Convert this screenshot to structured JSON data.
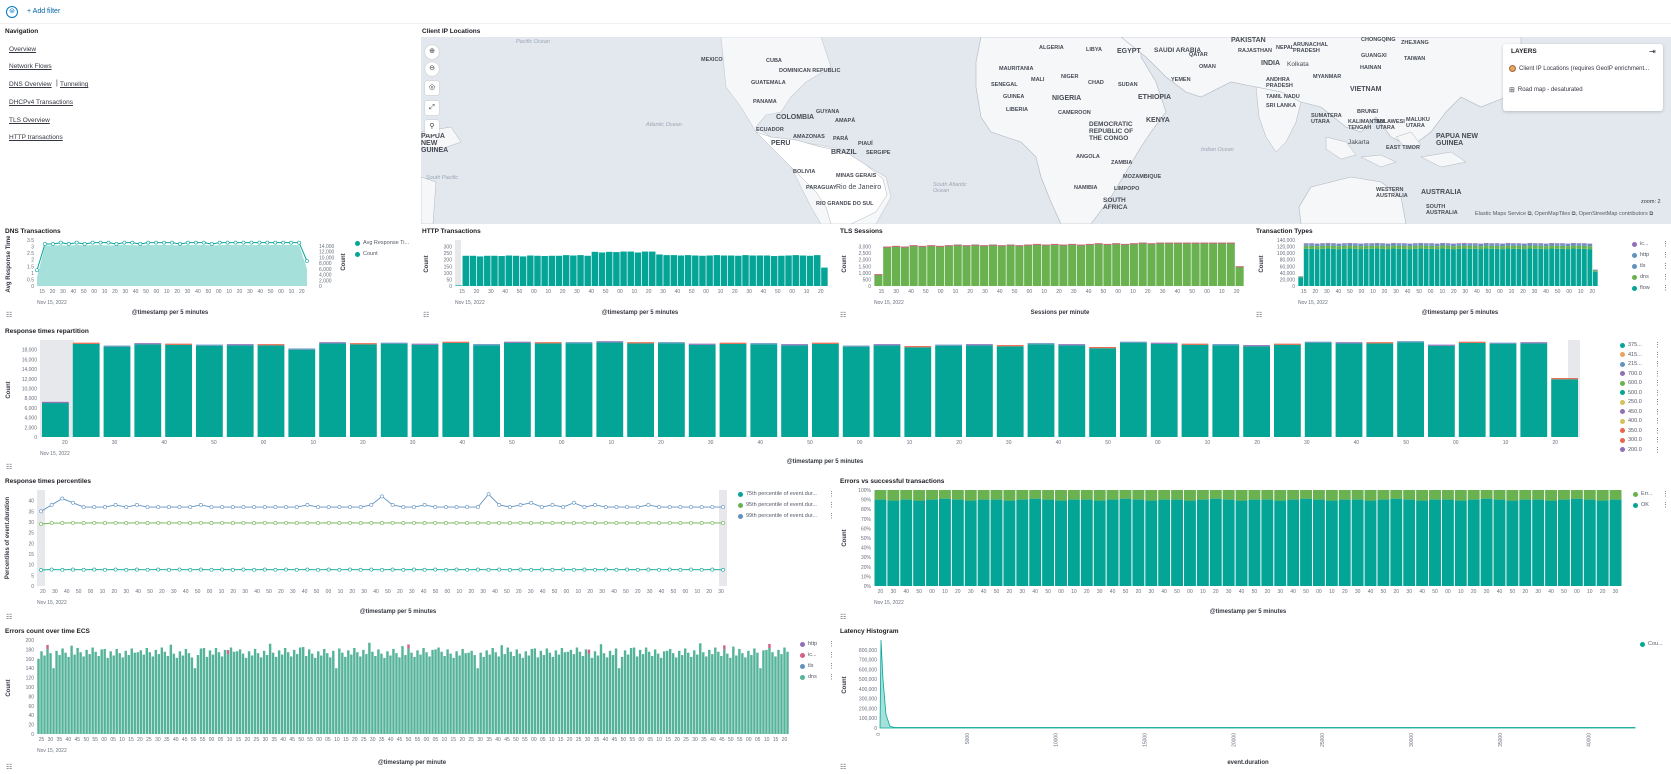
{
  "filter_bar": {
    "add_filter": "+ Add filter"
  },
  "navigation": {
    "title": "Navigation",
    "links": [
      "Overview",
      "Network Flows",
      "DNS Overview",
      "Tunneling",
      "DHCPv4 Transactions",
      "TLS Overview",
      "HTTP transactions"
    ]
  },
  "map": {
    "title": "Client IP Locations",
    "layers_title": "LAYERS",
    "layers": [
      "Client IP Locations (requires GeoIP enrichment...",
      "Road map - desaturated"
    ],
    "attribution": "Elastic Maps Service ⧉, OpenMapTiles ⧉, OpenStreetMap contributors ⧉",
    "zoom_label": "zoom: 2",
    "countries": [
      "MEXICO",
      "CUBA",
      "DOMINICAN REPUBLIC",
      "GUATEMALA",
      "PANAMA",
      "GUYANA",
      "COLOMBIA",
      "AMAPÁ",
      "ECUADOR",
      "AMAZONAS",
      "PARÁ",
      "PERU",
      "PIAUÍ",
      "BRAZIL",
      "SERGIPE",
      "BOLIVIA",
      "MINAS GERAIS",
      "PARAGUAY",
      "Rio de Janeiro",
      "RIO GRANDE DO SUL",
      "ALGERIA",
      "LIBYA",
      "EGYPT",
      "SAUDI ARABIA",
      "QATAR",
      "OMAN",
      "YEMEN",
      "MAURITANIA",
      "MALI",
      "NIGER",
      "CHAD",
      "SUDAN",
      "SENEGAL",
      "GUINEA",
      "NIGERIA",
      "ETHIOPIA",
      "LIBERIA",
      "CAMEROON",
      "KENYA",
      "DEMOCRATIC REPUBLIC OF THE CONGO",
      "ANGOLA",
      "ZAMBIA",
      "MOZAMBIQUE",
      "NAMIBIA",
      "LIMPOPO",
      "SOUTH AFRICA",
      "PAKISTAN",
      "RAJASTHAN",
      "NEPAL",
      "ARUNACHAL PRADESH",
      "INDIA",
      "Kolkata",
      "ANDHRA PRADESH",
      "TAMIL NADU",
      "SRI LANKA",
      "MYANMAR",
      "VIETNAM",
      "SUMATERA UTARA",
      "KALIMANTAN TENGAH",
      "Jakarta",
      "EAST TIMOR",
      "PAPUA NEW GUINEA",
      "WESTERN AUSTRALIA",
      "AUSTRALIA",
      "SOUTH AUSTRALIA",
      "CHONGQING",
      "ZHEJIANG",
      "TAIWAN",
      "GUANGXI",
      "HAINAN",
      "BRUNEI",
      "SULAWESI UTARA",
      "MALUKU UTARA",
      "PAPUA NEW GUINEA"
    ],
    "oceans": [
      "Pacific Ocean",
      "Atlantic Ocean",
      "South Atlantic Ocean",
      "Indian Ocean",
      "South Pacific"
    ]
  },
  "panels": {
    "dns": {
      "title": "DNS Transactions",
      "ylabel": "Avg Response Time",
      "ylabel2": "Count",
      "xlabel": "@timestamp per 5 minutes",
      "legend": [
        "Avg Response Ti...",
        "Count"
      ]
    },
    "http": {
      "title": "HTTP Transactions",
      "ylabel": "Count",
      "xlabel": "@timestamp per 5 minutes"
    },
    "tls": {
      "title": "TLS Sessions",
      "ylabel": "Count",
      "xlabel": "Sessions per minute"
    },
    "ttypes": {
      "title": "Transaction Types",
      "ylabel": "Count",
      "xlabel": "@timestamp per 5 minutes",
      "legend": [
        "ic...",
        "http",
        "tls",
        "dns",
        "flow"
      ]
    },
    "resp": {
      "title": "Response times repartition",
      "ylabel": "Count",
      "xlabel": "@timestamp per 5 minutes",
      "legend": [
        "375...",
        "415...",
        "215...",
        "700.0",
        "600.0",
        "500.0",
        "250.0",
        "450.0",
        "400.0",
        "350.0",
        "300.0",
        "200.0"
      ]
    },
    "pct": {
      "title": "Response times percentiles",
      "ylabel": "Percentiles of event.duration",
      "xlabel": "@timestamp per 5 minutes",
      "legend": [
        "75th percentile of event.dur...",
        "95th percentile of event.dur...",
        "99th percentile of event.dur..."
      ]
    },
    "errs": {
      "title": "Errors vs successful transactions",
      "ylabel": "Count",
      "xlabel": "@timestamp per 5 minutes",
      "legend": [
        "Err...",
        "OK"
      ]
    },
    "errecs": {
      "title": "Errors count over time ECS",
      "ylabel": "Count",
      "xlabel": "@timestamp per minute",
      "legend": [
        "http",
        "ic...",
        "tls",
        "dns"
      ]
    },
    "lat": {
      "title": "Latency Histogram",
      "ylabel": "Count",
      "xlabel": "event.duration",
      "legend": [
        "Cou..."
      ]
    }
  },
  "date_label": "Nov 15, 2022",
  "colors": {
    "teal": "#04a497",
    "green": "#6ab150",
    "blue": "#6092c0",
    "purple": "#9170b8",
    "pink": "#d36086",
    "light_teal": "#a6e0db",
    "accent": "#0077cc"
  },
  "chart_data": [
    {
      "id": "dns",
      "type": "area",
      "ylim": [
        0,
        3.5
      ],
      "y2lim": [
        0,
        16000
      ],
      "yticks": [
        "0",
        "0.5",
        "1",
        "1.5",
        "2",
        "2.5",
        "3",
        "3.5"
      ],
      "y2ticks": [
        "0",
        "2,000",
        "4,000",
        "6,000",
        "8,000",
        "10,000",
        "12,000",
        "14,000"
      ],
      "xticks": [
        "15",
        "20",
        "30",
        "40",
        "50",
        "00",
        "10",
        "20",
        "30",
        "40",
        "50",
        "00",
        "10",
        "20",
        "30",
        "40",
        "50",
        "00",
        "10",
        "20",
        "30",
        "40",
        "50",
        "00",
        "10",
        "20"
      ],
      "series": [
        {
          "name": "Avg Response Ti...",
          "values": [
            1.2,
            3.2,
            3.2,
            3.3,
            3.2,
            3.3,
            3.2,
            3.3,
            3.3,
            3.3,
            3.2,
            3.3,
            3.3,
            3.2,
            3.3,
            3.3,
            3.3,
            3.3,
            3.2,
            3.3,
            3.3,
            3.3,
            3.2,
            3.3,
            3.3,
            3.3,
            3.3,
            3.3,
            3.3,
            3.3,
            3.3,
            3.3,
            3.3,
            3.3,
            1.9
          ]
        },
        {
          "name": "Count",
          "values": [
            3000,
            14000,
            14100,
            14200,
            14000,
            14300,
            14100,
            14200,
            14300,
            14100,
            14200,
            14300,
            14200,
            14100,
            14300,
            14200,
            14300,
            14200,
            14100,
            14300,
            14200,
            14300,
            14100,
            14200,
            14300,
            14200,
            14300,
            14200,
            14300,
            14200,
            14300,
            14200,
            14300,
            14200,
            6000
          ]
        }
      ]
    },
    {
      "id": "http",
      "type": "bar",
      "ylim": [
        0,
        350
      ],
      "yticks": [
        "0",
        "50",
        "100",
        "150",
        "200",
        "250",
        "300"
      ],
      "xticks": [
        "15",
        "20",
        "30",
        "40",
        "50",
        "00",
        "10",
        "20",
        "30",
        "40",
        "50",
        "00",
        "10",
        "20",
        "30",
        "40",
        "50",
        "00",
        "10",
        "20",
        "30",
        "40",
        "50",
        "00",
        "10",
        "20"
      ],
      "values": [
        5,
        230,
        230,
        225,
        230,
        230,
        228,
        232,
        230,
        225,
        232,
        230,
        228,
        230,
        230,
        235,
        232,
        235,
        230,
        260,
        255,
        260,
        258,
        262,
        262,
        255,
        262,
        262,
        240,
        235,
        235,
        232,
        235,
        232,
        230,
        232,
        235,
        232,
        232,
        230,
        235,
        232,
        232,
        232,
        228,
        230,
        232,
        235,
        232,
        230,
        235,
        140
      ]
    },
    {
      "id": "tls",
      "type": "bar",
      "ylim": [
        0,
        3500
      ],
      "yticks": [
        "0",
        "500",
        "1,000",
        "1,500",
        "2,000",
        "2,500",
        "3,000"
      ],
      "xticks": [
        "15",
        "30",
        "40",
        "50",
        "00",
        "10",
        "20",
        "30",
        "40",
        "50",
        "00",
        "10",
        "20",
        "30",
        "40",
        "50",
        "00",
        "10",
        "20",
        "30",
        "40",
        "50",
        "00",
        "10",
        "20"
      ],
      "values": [
        900,
        3000,
        3050,
        3000,
        3100,
        3050,
        3100,
        3050,
        3100,
        3150,
        3100,
        3150,
        3100,
        3150,
        3100,
        3150,
        3100,
        3150,
        3200,
        3150,
        3200,
        3150,
        3200,
        3150,
        3200,
        3250,
        3200,
        3250,
        3200,
        3250,
        3300,
        3250,
        3300,
        3300,
        3300,
        3300,
        3300,
        3300,
        3300,
        3300,
        3300,
        1500
      ]
    },
    {
      "id": "ttypes",
      "type": "bar",
      "ylim": [
        0,
        140000
      ],
      "yticks": [
        "0",
        "20,000",
        "40,000",
        "60,000",
        "80,000",
        "100,000",
        "120,000",
        "140,000"
      ],
      "xticks": [
        "15",
        "20",
        "30",
        "40",
        "50",
        "00",
        "10",
        "20",
        "30",
        "40",
        "50",
        "00",
        "10",
        "20",
        "30",
        "40",
        "50",
        "00",
        "10",
        "20",
        "30",
        "40",
        "50",
        "00",
        "10",
        "20"
      ],
      "values": [
        30000,
        130000,
        130000,
        129000,
        130000,
        131000,
        130000,
        129000,
        130000,
        131000,
        130000,
        129000,
        130000,
        130000,
        131000,
        130000,
        129000,
        131000,
        130000,
        130000,
        129000,
        130000,
        131000,
        130000,
        130000,
        129000,
        131000,
        130000,
        129000,
        130000,
        131000,
        130000,
        130000,
        129000,
        131000,
        130000,
        130000,
        129000,
        131000,
        130000,
        130000,
        129000,
        131000,
        130000,
        130000,
        129000,
        131000,
        130000,
        130000,
        129000,
        131000,
        130000,
        130000,
        129000,
        50000
      ]
    },
    {
      "id": "resp",
      "type": "bar",
      "ylim": [
        0,
        20000
      ],
      "yticks": [
        "0",
        "2,000",
        "4,000",
        "6,000",
        "8,000",
        "10,000",
        "12,000",
        "14,000",
        "16,000",
        "18,000"
      ],
      "xticks": [
        "20",
        "30",
        "40",
        "50",
        "00",
        "10",
        "20",
        "30",
        "40",
        "50",
        "00",
        "10",
        "20",
        "30",
        "40",
        "50",
        "00",
        "10",
        "20",
        "30",
        "40",
        "50",
        "00",
        "10",
        "20",
        "30",
        "40",
        "50",
        "00",
        "10",
        "20"
      ],
      "values": [
        7000,
        19200,
        18600,
        19100,
        19000,
        18800,
        18900,
        18900,
        18000,
        19300,
        19100,
        19200,
        19000,
        19400,
        18900,
        19400,
        19300,
        19300,
        19500,
        19300,
        19300,
        19000,
        19200,
        19100,
        18900,
        19200,
        18600,
        18900,
        18500,
        18800,
        18900,
        18700,
        19100,
        18900,
        18300,
        19400,
        19200,
        19000,
        18900,
        18700,
        19000,
        19400,
        19300,
        19300,
        19500,
        18800,
        19400,
        19200,
        19300,
        11900
      ]
    },
    {
      "id": "pct",
      "type": "line",
      "ylim": [
        0,
        45
      ],
      "yticks": [
        "0",
        "5",
        "10",
        "15",
        "20",
        "25",
        "30",
        "35",
        "40"
      ],
      "series": [
        {
          "name": "75th percentile of event.dur...",
          "values": [
            7.5,
            7.7,
            7.6,
            7.7,
            7.6,
            7.7,
            7.6,
            7.7,
            7.6,
            7.7,
            7.6,
            7.7,
            7.6,
            7.7,
            7.6,
            7.7,
            7.6,
            7.7,
            7.6,
            7.7,
            7.6,
            7.7,
            7.6,
            7.7,
            7.6,
            7.7,
            7.6,
            7.7,
            7.6,
            7.7,
            7.6,
            7.7,
            7.6,
            7.7,
            7.6,
            7.7,
            7.6,
            7.7,
            7.6,
            7.7,
            7.6,
            7.7,
            7.6,
            7.7,
            7.6,
            7.7,
            7.6,
            7.7,
            7.6,
            7.7,
            7.6,
            7.7,
            7.6,
            7.7,
            7.6,
            7.7,
            7.6,
            7.7,
            7.6,
            7.7,
            7.6,
            7.7,
            7.6,
            7.7,
            7.6
          ]
        },
        {
          "name": "95th percentile of event.dur...",
          "values": [
            29,
            29.5,
            29.5,
            29.6,
            29.5,
            29.6,
            29.5,
            29.6,
            29.5,
            29.6,
            29.5,
            29.6,
            29.5,
            29.6,
            29.5,
            29.6,
            29.5,
            29.6,
            29.5,
            29.6,
            29.5,
            29.6,
            29.5,
            29.6,
            29.5,
            29.6,
            29.5,
            29.6,
            29.5,
            29.6,
            29.5,
            29.6,
            29.5,
            29.6,
            29.5,
            29.6,
            29.5,
            29.6,
            29.5,
            29.6,
            29.5,
            29.6,
            29.5,
            29.6,
            29.5,
            29.6,
            29.5,
            29.6,
            29.5,
            29.6,
            29.5,
            29.6,
            29.5,
            29.6,
            29.5,
            29.6,
            29.5,
            29.6,
            29.5,
            29.6,
            29.5,
            29.6,
            29.5,
            29.6,
            29.5
          ]
        },
        {
          "name": "99th percentile of event.dur...",
          "values": [
            35,
            38,
            41,
            39,
            37,
            37,
            37,
            38,
            37,
            38,
            37,
            37,
            37,
            37,
            37,
            38,
            37,
            37,
            37,
            37,
            37,
            37,
            37,
            37,
            37,
            38,
            37,
            37,
            37,
            37,
            37,
            38,
            42,
            38,
            37,
            37,
            38,
            37,
            37,
            37,
            37,
            37,
            43,
            38,
            37,
            38,
            39,
            37,
            38,
            37,
            39,
            37,
            38,
            37,
            37,
            37,
            37,
            38,
            37,
            37,
            37,
            37,
            37,
            37,
            37
          ]
        }
      ]
    },
    {
      "id": "errs",
      "type": "bar",
      "ylim": [
        0,
        100
      ],
      "yticks": [
        "0%",
        "10%",
        "20%",
        "30%",
        "40%",
        "50%",
        "60%",
        "70%",
        "80%",
        "90%",
        "100%"
      ],
      "series": [
        {
          "name": "OK",
          "values": [
            90,
            89,
            90,
            89,
            90,
            91,
            90,
            89,
            90,
            90,
            89,
            90,
            91,
            90,
            89,
            90,
            90,
            89,
            90,
            91,
            90,
            89,
            90,
            90,
            89,
            90,
            91,
            90,
            89,
            90,
            90,
            89,
            90,
            91,
            90,
            89,
            90,
            90,
            89,
            90,
            91,
            90,
            89,
            90,
            90,
            89,
            90,
            91,
            90,
            89,
            90,
            90,
            89,
            90,
            91,
            90,
            89,
            90
          ]
        },
        {
          "name": "Err...",
          "values": [
            10,
            11,
            10,
            11,
            10,
            9,
            10,
            11,
            10,
            10,
            11,
            10,
            9,
            10,
            11,
            10,
            10,
            11,
            10,
            9,
            10,
            11,
            10,
            10,
            11,
            10,
            9,
            10,
            11,
            10,
            10,
            11,
            10,
            9,
            10,
            11,
            10,
            10,
            11,
            10,
            9,
            10,
            11,
            10,
            10,
            11,
            10,
            9,
            10,
            11,
            10,
            10,
            11,
            10,
            9,
            10,
            11,
            10
          ]
        }
      ]
    },
    {
      "id": "errecs",
      "type": "bar",
      "ylim": [
        0,
        200
      ],
      "yticks": [
        "0",
        "20",
        "40",
        "60",
        "80",
        "100",
        "120",
        "140",
        "160",
        "180",
        "200"
      ]
    },
    {
      "id": "lat",
      "type": "area",
      "ylim": [
        0,
        900000
      ],
      "yticks": [
        "0",
        "100,000",
        "200,000",
        "300,000",
        "400,000",
        "500,000",
        "600,000",
        "700,000",
        "800,000"
      ],
      "xticks": [
        "0",
        "5000",
        "10000",
        "15000",
        "20000",
        "25000",
        "30000",
        "35000",
        "40000"
      ]
    }
  ]
}
